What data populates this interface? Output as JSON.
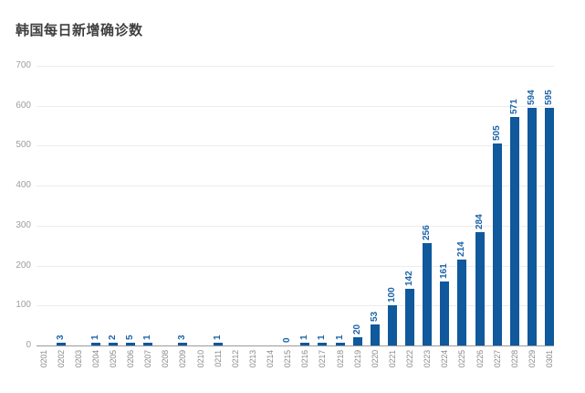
{
  "chart": {
    "title": "韩国每日新增确诊数"
  },
  "chart_data": {
    "type": "bar",
    "title": "韩国每日新增确诊数",
    "categories": [
      "0201",
      "0202",
      "0203",
      "0204",
      "0205",
      "0206",
      "0207",
      "0208",
      "0209",
      "0210",
      "0211",
      "0212",
      "0213",
      "0214",
      "0215",
      "0216",
      "0217",
      "0218",
      "0219",
      "0220",
      "0221",
      "0222",
      "0223",
      "0224",
      "0225",
      "0226",
      "0227",
      "0228",
      "0229",
      "0301"
    ],
    "values": [
      null,
      3,
      null,
      1,
      2,
      5,
      1,
      null,
      3,
      null,
      1,
      null,
      null,
      null,
      0,
      1,
      1,
      1,
      20,
      53,
      100,
      142,
      256,
      161,
      214,
      284,
      505,
      571,
      594,
      595
    ],
    "xlabel": "",
    "ylabel": "",
    "ylim": [
      0,
      700
    ],
    "yticks": [
      0,
      100,
      200,
      300,
      400,
      500,
      600,
      700
    ],
    "grid": "horizontal",
    "legend": "none",
    "value_labels_rotated": true,
    "colors": {
      "bar": "#0f599c",
      "value_label": "#1d64a8",
      "gridline": "#ececec",
      "axis_line": "#9a9a9a",
      "y_tick_label": "#9e9e9e",
      "x_tick_label": "#8c8c8c",
      "title": "#3f3f3f",
      "background": "#ffffff"
    }
  }
}
